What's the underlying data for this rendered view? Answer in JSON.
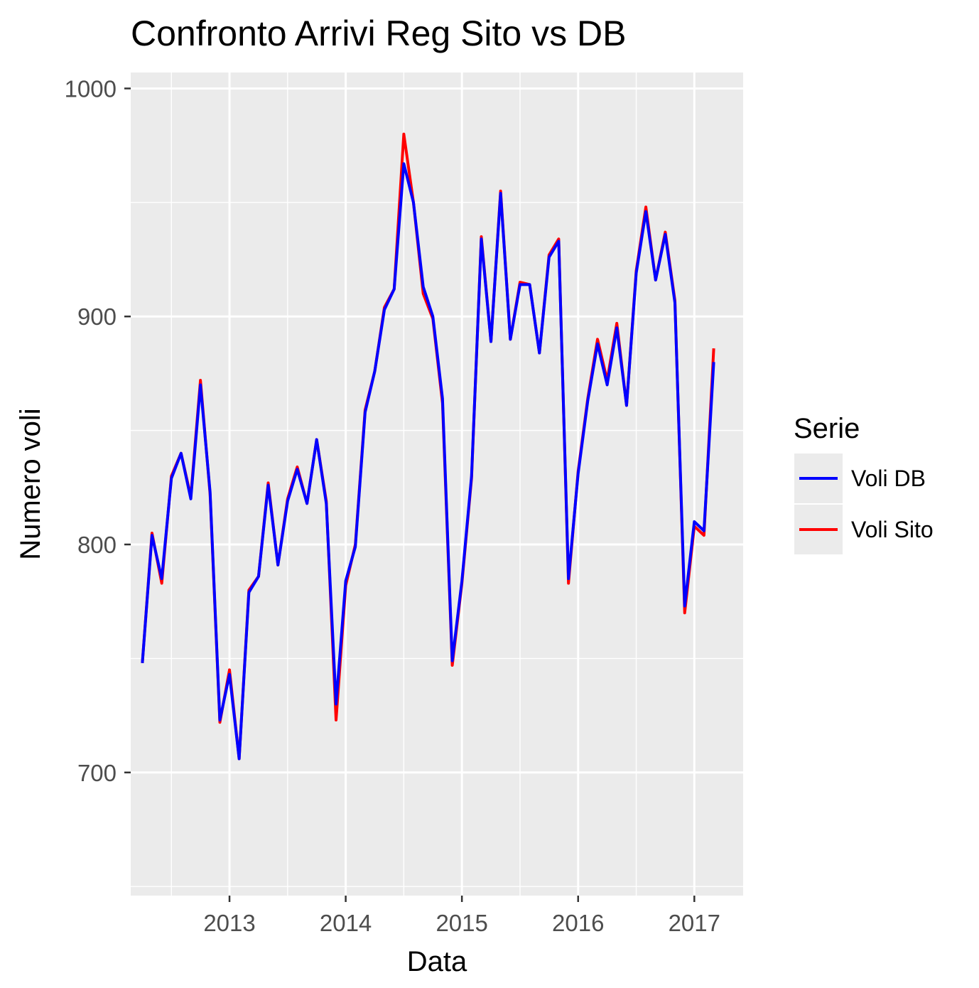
{
  "chart_data": {
    "type": "line",
    "title": "Confronto Arrivi Reg Sito vs DB",
    "xlabel": "Data",
    "ylabel": "Numero voli",
    "x_tick_labels": [
      "2013",
      "2014",
      "2015",
      "2016",
      "2017"
    ],
    "y_tick_labels": [
      "700",
      "800",
      "900",
      "1000"
    ],
    "y_ticks": [
      700,
      800,
      900,
      1000
    ],
    "ylim": [
      646,
      1007
    ],
    "xlim": [
      2012.15,
      2017.42
    ],
    "grid": true,
    "background": "#ebebeb",
    "legend": {
      "title": "Serie",
      "placement": "right",
      "entries": [
        {
          "label": "Voli DB",
          "color": "#0000ff"
        },
        {
          "label": "Voli Sito",
          "color": "#ff0000"
        }
      ]
    },
    "x": [
      2012.25,
      2012.333,
      2012.417,
      2012.5,
      2012.583,
      2012.667,
      2012.75,
      2012.833,
      2012.917,
      2013.0,
      2013.083,
      2013.167,
      2013.25,
      2013.333,
      2013.417,
      2013.5,
      2013.583,
      2013.667,
      2013.75,
      2013.833,
      2013.917,
      2014.0,
      2014.083,
      2014.167,
      2014.25,
      2014.333,
      2014.417,
      2014.5,
      2014.583,
      2014.667,
      2014.75,
      2014.833,
      2014.917,
      2015.0,
      2015.083,
      2015.167,
      2015.25,
      2015.333,
      2015.417,
      2015.5,
      2015.583,
      2015.667,
      2015.75,
      2015.833,
      2015.917,
      2016.0,
      2016.083,
      2016.167,
      2016.25,
      2016.333,
      2016.417,
      2016.5,
      2016.583,
      2016.667,
      2016.75,
      2016.833,
      2016.917,
      2017.0,
      2017.083,
      2017.167
    ],
    "series": [
      {
        "name": "Voli Sito",
        "color": "#ff0000",
        "values": [
          748,
          805,
          783,
          830,
          840,
          821,
          872,
          822,
          722,
          745,
          706,
          780,
          786,
          827,
          791,
          820,
          834,
          818,
          846,
          819,
          723,
          782,
          800,
          859,
          876,
          904,
          912,
          980,
          950,
          910,
          899,
          862,
          747,
          783,
          829,
          935,
          889,
          955,
          890,
          915,
          914,
          884,
          927,
          934,
          783,
          832,
          864,
          890,
          872,
          897,
          861,
          920,
          948,
          916,
          937,
          907,
          770,
          808,
          804,
          886
        ]
      },
      {
        "name": "Voli DB",
        "color": "#0000ff",
        "values": [
          748,
          804,
          785,
          829,
          840,
          820,
          870,
          823,
          723,
          743,
          706,
          779,
          786,
          826,
          791,
          819,
          833,
          818,
          846,
          818,
          730,
          784,
          799,
          858,
          876,
          903,
          912,
          967,
          950,
          913,
          900,
          864,
          749,
          784,
          830,
          934,
          889,
          954,
          890,
          914,
          914,
          884,
          926,
          933,
          785,
          831,
          863,
          888,
          870,
          895,
          861,
          919,
          946,
          916,
          936,
          906,
          773,
          810,
          806,
          880
        ]
      }
    ]
  }
}
